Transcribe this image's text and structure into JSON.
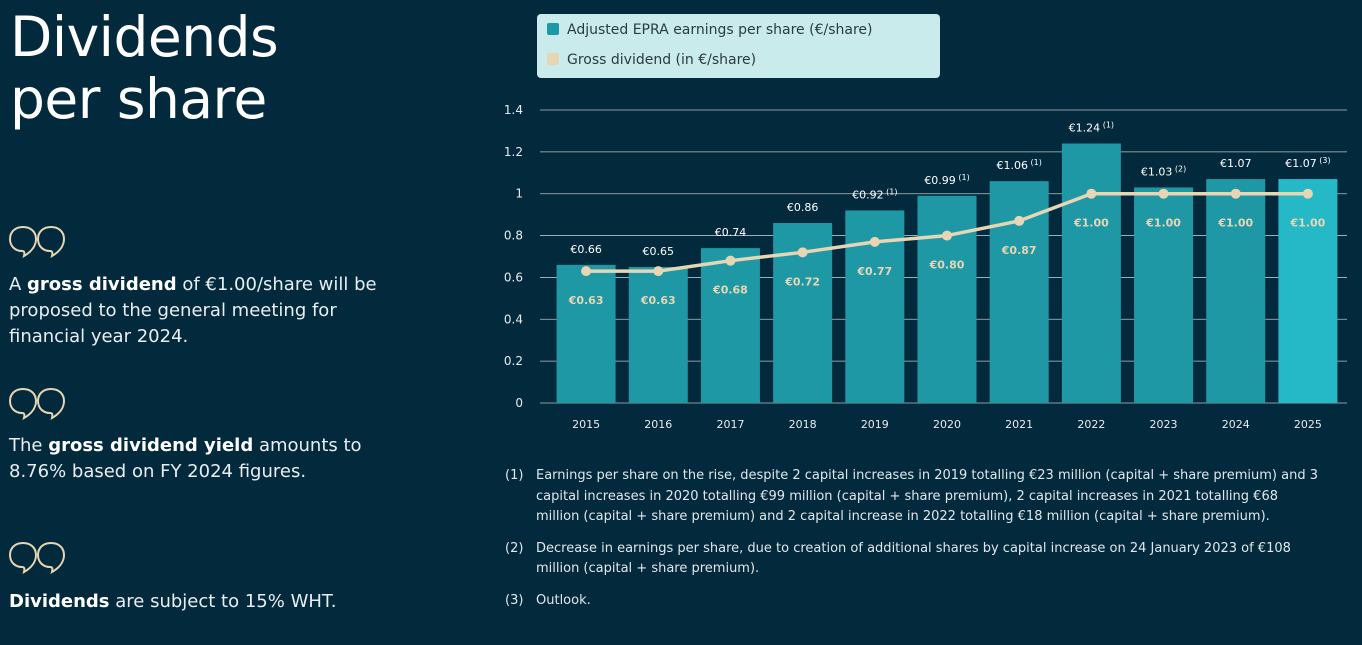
{
  "page": {
    "title_line1": "Dividends",
    "title_line2": "per share"
  },
  "statements": [
    {
      "pre": "A ",
      "bold": "gross dividend",
      "post": " of €1.00/share will be proposed to the general meeting for financial year 2024."
    },
    {
      "pre": "The ",
      "bold": "gross dividend yield",
      "post": " amounts to 8.76% based on FY 2024 figures."
    },
    {
      "pre": "",
      "bold": "Dividends",
      "post": " are subject to 15% WHT."
    }
  ],
  "legend": {
    "earnings_label": "Adjusted EPRA earnings per share (€/share)",
    "dividend_label": "Gross dividend (in €/share)"
  },
  "colors": {
    "background": "#032a3c",
    "bar": "#1f98a6",
    "bar_outlook": "#25b9c8",
    "line": "#e6d6b4",
    "legend_bg": "#c9ebec",
    "quote_icon": "#e6d6b4"
  },
  "chart_data": {
    "type": "bar",
    "categories": [
      "2015",
      "2016",
      "2017",
      "2018",
      "2019",
      "2020",
      "2021",
      "2022",
      "2023",
      "2024",
      "2025"
    ],
    "series": [
      {
        "name": "Adjusted EPRA earnings per share (€/share)",
        "type": "bar",
        "values": [
          0.66,
          0.65,
          0.74,
          0.86,
          0.92,
          0.99,
          1.06,
          1.24,
          1.03,
          1.07,
          1.07
        ],
        "labels": [
          "€0.66",
          "€0.65",
          "€0.74",
          "€0.86",
          "€0.92",
          "€0.99",
          "€1.06",
          "€1.24",
          "€1.03",
          "€1.07",
          "€1.07"
        ],
        "footnote_refs": [
          "",
          "",
          "",
          "",
          "(1)",
          "(1)",
          "(1)",
          "(1)",
          "(2)",
          "",
          "(3)"
        ]
      },
      {
        "name": "Gross dividend (in €/share)",
        "type": "line",
        "values": [
          0.63,
          0.63,
          0.68,
          0.72,
          0.77,
          0.8,
          0.87,
          1.0,
          1.0,
          1.0,
          1.0
        ],
        "labels": [
          "€0.63",
          "€0.63",
          "€0.68",
          "€0.72",
          "€0.77",
          "€0.80",
          "€0.87",
          "€1.00",
          "€1.00",
          "€1.00",
          "€1.00"
        ]
      }
    ],
    "ylim": [
      0,
      1.4
    ],
    "yticks": [
      "0",
      "0.2",
      "0.4",
      "0.6",
      "0.8",
      "1",
      "1.2",
      "1.4"
    ],
    "grid": true,
    "legend_position": "top"
  },
  "notes": [
    {
      "num": "(1)",
      "text": "Earnings per share on the rise, despite 2 capital increases in 2019 totalling €23 million (capital + share premium) and 3 capital increases in 2020 totalling €99 million (capital + share premium), 2 capital increases in 2021 totalling €68 million (capital + share premium) and 2 capital increase in 2022 totalling €18 million (capital + share premium)."
    },
    {
      "num": "(2)",
      "text": "Decrease in earnings per share, due to creation of additional shares by capital increase on 24 January 2023 of €108 million (capital + share premium)."
    },
    {
      "num": "(3)",
      "text": "Outlook."
    }
  ]
}
